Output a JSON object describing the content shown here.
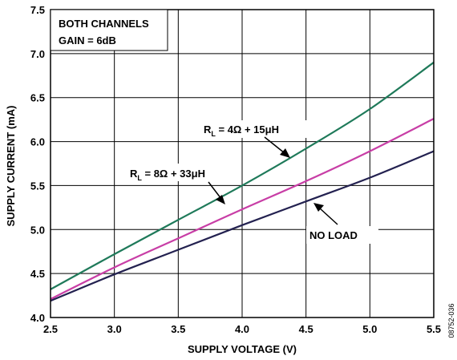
{
  "chart_data": {
    "type": "line",
    "xlabel": "SUPPLY VOLTAGE (V)",
    "ylabel": "SUPPLY CURRENT (mA)",
    "xlim": [
      2.5,
      5.5
    ],
    "ylim": [
      4.0,
      7.5
    ],
    "xticks": [
      "2.5",
      "3.0",
      "3.5",
      "4.0",
      "4.5",
      "5.0",
      "5.5"
    ],
    "yticks": [
      "4.0",
      "4.5",
      "5.0",
      "5.5",
      "6.0",
      "6.5",
      "7.0",
      "7.5"
    ],
    "grid": true,
    "box_lines": [
      "BOTH CHANNELS",
      "GAIN = 6dB"
    ],
    "figure_id": "08752-036",
    "series": [
      {
        "color": "#1f7a5a",
        "x": [
          2.5,
          3.0,
          3.5,
          4.0,
          4.5,
          5.0,
          5.5
        ],
        "y": [
          4.32,
          4.72,
          5.11,
          5.5,
          5.92,
          6.37,
          6.9
        ]
      },
      {
        "color": "#c83ea6",
        "x": [
          2.5,
          3.0,
          3.5,
          4.0,
          4.5,
          5.0,
          5.5
        ],
        "y": [
          4.21,
          4.57,
          4.9,
          5.23,
          5.55,
          5.89,
          6.26
        ]
      },
      {
        "color": "#232150",
        "x": [
          2.5,
          3.0,
          3.5,
          4.0,
          4.5,
          5.0,
          5.5
        ],
        "y": [
          4.19,
          4.49,
          4.77,
          5.05,
          5.32,
          5.59,
          5.89
        ]
      }
    ],
    "annotations": [
      {
        "label_main": "R",
        "label_sub": "L",
        "label_rest": " = 4Ω + 15μH"
      },
      {
        "label_main": "R",
        "label_sub": "L",
        "label_rest": " = 8Ω + 33μH"
      },
      {
        "label_main": "NO LOAD",
        "label_sub": "",
        "label_rest": ""
      }
    ]
  }
}
